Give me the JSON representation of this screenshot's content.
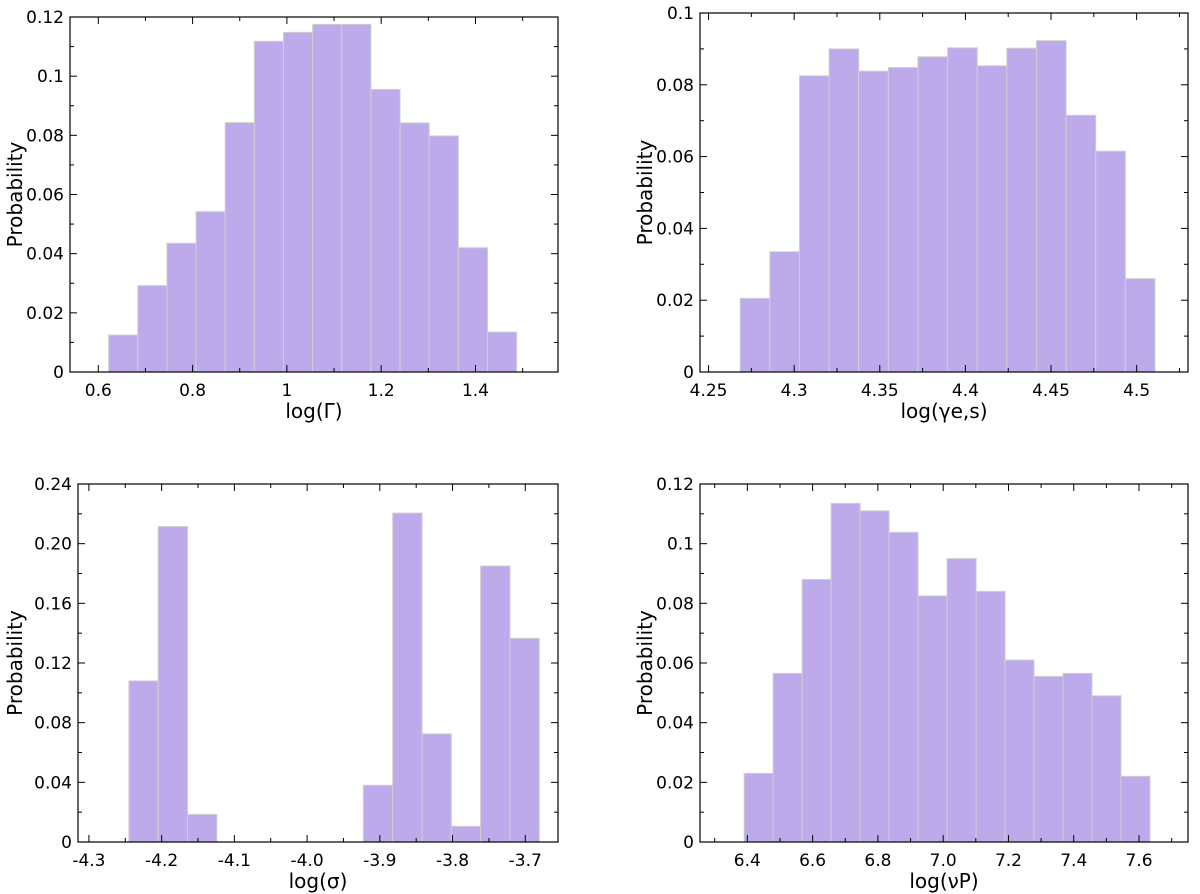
{
  "chart_data": [
    {
      "type": "bar",
      "title": "",
      "xlabel": "log(Γ)",
      "ylabel": "Probability",
      "xlim": [
        0.54,
        1.575
      ],
      "ylim": [
        0,
        0.12
      ],
      "xticks": [
        0.6,
        0.8,
        1.0,
        1.2,
        1.4
      ],
      "xtick_labels": [
        "0.6",
        "0.8",
        "1",
        "1.2",
        "1.4"
      ],
      "yticks": [
        0,
        0.02,
        0.04,
        0.06,
        0.08,
        0.1,
        0.12
      ],
      "ytick_labels": [
        "0",
        "0.02",
        "0.04",
        "0.06",
        "0.08",
        "0.1",
        "0.12"
      ],
      "bin_edges": [
        0.622,
        0.6838,
        0.7456,
        0.8074,
        0.8692,
        0.931,
        0.9928,
        1.0546,
        1.1164,
        1.1782,
        1.24,
        1.3018,
        1.3636,
        1.4254,
        1.4872
      ],
      "values": [
        0.0125,
        0.0292,
        0.0435,
        0.0542,
        0.0843,
        0.1118,
        0.1148,
        0.1175,
        0.1175,
        0.0955,
        0.0842,
        0.0798,
        0.042,
        0.0135
      ]
    },
    {
      "type": "bar",
      "title": "",
      "xlabel": "log(γe,s)",
      "ylabel": "Probability",
      "xlim": [
        4.245,
        4.53
      ],
      "ylim": [
        0,
        0.1
      ],
      "xticks": [
        4.25,
        4.3,
        4.35,
        4.4,
        4.45,
        4.5
      ],
      "xtick_labels": [
        "4.25",
        "4.3",
        "4.35",
        "4.4",
        "4.45",
        "4.5"
      ],
      "yticks": [
        0,
        0.02,
        0.04,
        0.06,
        0.08,
        0.1
      ],
      "ytick_labels": [
        "0",
        "0.02",
        "0.04",
        "0.06",
        "0.08",
        "0.1"
      ],
      "bin_edges": [
        4.2685,
        4.2858,
        4.3031,
        4.3204,
        4.3377,
        4.355,
        4.3723,
        4.3896,
        4.4069,
        4.4242,
        4.4415,
        4.4588,
        4.4761,
        4.4934,
        4.5107
      ],
      "values": [
        0.0205,
        0.0335,
        0.0825,
        0.09,
        0.0838,
        0.0848,
        0.0878,
        0.0903,
        0.0853,
        0.0902,
        0.0923,
        0.0715,
        0.0615,
        0.026
      ]
    },
    {
      "type": "bar",
      "title": "",
      "xlabel": "log(σ)",
      "ylabel": "Probability",
      "xlim": [
        -4.315,
        -3.655
      ],
      "ylim": [
        0,
        0.24
      ],
      "xticks": [
        -4.3,
        -4.2,
        -4.1,
        -4.0,
        -3.9,
        -3.8,
        -3.7
      ],
      "xtick_labels": [
        "-4.3",
        "-4.2",
        "-4.1",
        "-4.0",
        "-3.9",
        "-3.8",
        "-3.7"
      ],
      "yticks": [
        0,
        0.04,
        0.08,
        0.12,
        0.16,
        0.2,
        0.24
      ],
      "ytick_labels": [
        "0",
        "0.04",
        "0.08",
        "0.12",
        "0.16",
        "0.20",
        "0.24"
      ],
      "bin_edges": [
        -4.245,
        -4.2047,
        -4.1644,
        -4.1241,
        -4.0838,
        -4.0435,
        -4.0032,
        -3.9629,
        -3.9226,
        -3.8823,
        -3.842,
        -3.8017,
        -3.7614,
        -3.7211,
        -3.6808
      ],
      "values": [
        0.108,
        0.2115,
        0.0185,
        0,
        0,
        0,
        0,
        0,
        0.038,
        0.2205,
        0.0725,
        0.0105,
        0.185,
        0.1365
      ]
    },
    {
      "type": "bar",
      "title": "",
      "xlabel": "log(νP)",
      "ylabel": "Probability",
      "xlim": [
        6.255,
        7.75
      ],
      "ylim": [
        0,
        0.12
      ],
      "xticks": [
        6.4,
        6.6,
        6.8,
        7.0,
        7.2,
        7.4,
        7.6
      ],
      "xtick_labels": [
        "6.4",
        "6.6",
        "6.8",
        "7.0",
        "7.2",
        "7.4",
        "7.6"
      ],
      "yticks": [
        0,
        0.02,
        0.04,
        0.06,
        0.08,
        0.1,
        0.12
      ],
      "ytick_labels": [
        "0",
        "0.02",
        "0.04",
        "0.06",
        "0.08",
        "0.1",
        "0.12"
      ],
      "bin_edges": [
        6.3903,
        6.4791,
        6.5679,
        6.6567,
        6.7455,
        6.8343,
        6.9231,
        7.0119,
        7.1007,
        7.1895,
        7.2783,
        7.3671,
        7.4559,
        7.5447,
        7.6335
      ],
      "values": [
        0.023,
        0.0565,
        0.088,
        0.1135,
        0.111,
        0.1038,
        0.0825,
        0.095,
        0.084,
        0.061,
        0.0555,
        0.0565,
        0.049,
        0.022
      ]
    }
  ],
  "colors": {
    "bar_fill": "#bcaaea",
    "bar_edge": "#cfcfcf",
    "axis": "#000000"
  }
}
